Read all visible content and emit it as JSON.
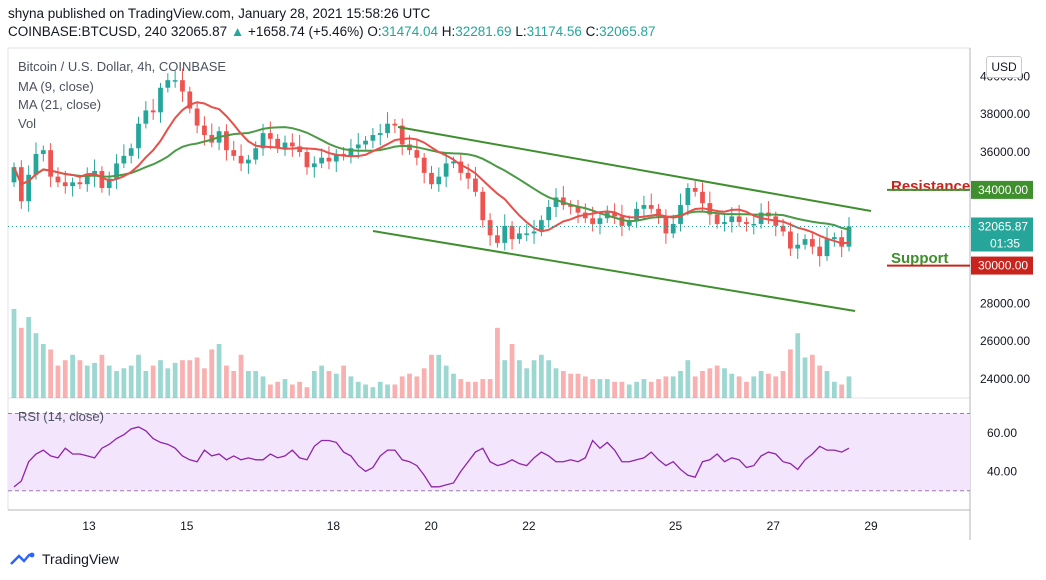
{
  "header": {
    "published_line": "shyna published on TradingView.com, January 28, 2021 15:58:26 UTC",
    "symbol": "COINBASE:BTCUSD, 240",
    "last": "32065.87",
    "change_arrow": "▲",
    "change": "+1658.74 (+5.46%)",
    "o_label": "O:",
    "o_value": "31474.04",
    "h_label": "H:",
    "h_value": "32281.69",
    "l_label": "L:",
    "l_value": "31174.56",
    "c_label": "C:",
    "c_value": "32065.87"
  },
  "legend": {
    "title": "Bitcoin / U.S. Dollar, 4h, COINBASE",
    "ma9": "MA (9, close)",
    "ma21": "MA (21, close)",
    "vol": "Vol",
    "rsi": "RSI (14, close)"
  },
  "currency_button": "USD",
  "annotations": {
    "resistance_label": "Resistance",
    "support_label": "Support",
    "resistance_value": "34000.00",
    "support_value": "30000.00",
    "price_value": "32065.87",
    "countdown": "01:35"
  },
  "footer": {
    "brand": "TradingView"
  },
  "colors": {
    "up": "#26a69a",
    "down": "#ef5350",
    "ma9": "#e8504b",
    "ma21": "#4c9a47",
    "channel": "#3f8f2e",
    "annotation": "#c8241d",
    "rsi_line": "#8e24aa",
    "rsi_band": "#f3e5fc"
  },
  "chart_data": {
    "type": "candlestick",
    "title": "Bitcoin / U.S. Dollar, 4h, COINBASE",
    "price_axis": {
      "ticks": [
        "40000.00",
        "38000.00",
        "36000.00",
        "34000.00",
        "32000.00",
        "30000.00",
        "28000.00",
        "26000.00",
        "24000.00"
      ],
      "range": [
        23000,
        41500
      ]
    },
    "rsi_axis": {
      "ticks": [
        "60.00",
        "40.00"
      ],
      "range": [
        20,
        78
      ],
      "bands": [
        30,
        70
      ]
    },
    "x_ticks": [
      {
        "label": "13",
        "day": 13
      },
      {
        "label": "15",
        "day": 15
      },
      {
        "label": "18",
        "day": 18
      },
      {
        "label": "20",
        "day": 20
      },
      {
        "label": "22",
        "day": 22
      },
      {
        "label": "25",
        "day": 25
      },
      {
        "label": "27",
        "day": 27
      },
      {
        "label": "29",
        "day": 29
      }
    ],
    "close": [
      35200,
      33400,
      34800,
      35900,
      36100,
      34700,
      34400,
      34200,
      34400,
      34300,
      34700,
      35000,
      34100,
      34600,
      35400,
      35800,
      36200,
      37500,
      38200,
      38100,
      39400,
      39800,
      39800,
      39200,
      38300,
      37400,
      36900,
      36500,
      37100,
      36100,
      35800,
      35400,
      35600,
      36200,
      37000,
      36700,
      36200,
      36500,
      36300,
      36000,
      35200,
      35400,
      35700,
      35500,
      35900,
      35800,
      36200,
      36400,
      36600,
      36900,
      37000,
      37500,
      37400,
      36400,
      36100,
      35700,
      34900,
      34300,
      34700,
      35400,
      35500,
      34900,
      34600,
      33900,
      32400,
      31600,
      31200,
      32100,
      31400,
      31700,
      31700,
      31800,
      32400,
      33100,
      33600,
      33200,
      33100,
      32800,
      32500,
      32200,
      32500,
      32800,
      32600,
      32100,
      32400,
      33000,
      33200,
      33000,
      32600,
      31700,
      32200,
      33200,
      34100,
      33900,
      33300,
      32700,
      32200,
      32300,
      32600,
      32300,
      32200,
      32200,
      32800,
      32600,
      32100,
      31800,
      30900,
      31100,
      31400,
      31000,
      30500,
      31400,
      31500,
      31000,
      32070
    ],
    "volume": [
      0.33,
      0.26,
      0.3,
      0.24,
      0.2,
      0.18,
      0.12,
      0.14,
      0.16,
      0.14,
      0.12,
      0.13,
      0.16,
      0.12,
      0.1,
      0.11,
      0.12,
      0.16,
      0.1,
      0.12,
      0.14,
      0.11,
      0.13,
      0.14,
      0.14,
      0.15,
      0.11,
      0.18,
      0.2,
      0.12,
      0.1,
      0.16,
      0.1,
      0.1,
      0.08,
      0.05,
      0.06,
      0.07,
      0.05,
      0.06,
      0.04,
      0.1,
      0.12,
      0.1,
      0.09,
      0.12,
      0.08,
      0.06,
      0.05,
      0.04,
      0.06,
      0.05,
      0.05,
      0.08,
      0.09,
      0.08,
      0.11,
      0.16,
      0.16,
      0.12,
      0.09,
      0.07,
      0.06,
      0.06,
      0.07,
      0.07,
      0.26,
      0.14,
      0.2,
      0.14,
      0.11,
      0.14,
      0.16,
      0.14,
      0.11,
      0.1,
      0.09,
      0.09,
      0.08,
      0.07,
      0.07,
      0.07,
      0.06,
      0.06,
      0.05,
      0.06,
      0.07,
      0.06,
      0.07,
      0.08,
      0.08,
      0.1,
      0.14,
      0.08,
      0.1,
      0.11,
      0.12,
      0.11,
      0.09,
      0.08,
      0.06,
      0.08,
      0.1,
      0.09,
      0.08,
      0.1,
      0.18,
      0.24,
      0.15,
      0.16,
      0.12,
      0.1,
      0.06,
      0.05,
      0.08
    ],
    "rsi": [
      32,
      35,
      45,
      49,
      51,
      48,
      47,
      52,
      49,
      49,
      48,
      47,
      52,
      54,
      57,
      59,
      62,
      63,
      61,
      57,
      55,
      54,
      52,
      48,
      46,
      45,
      51,
      48,
      49,
      46,
      48,
      46,
      47,
      46,
      46,
      49,
      47,
      48,
      51,
      47,
      46,
      53,
      56,
      56,
      55,
      50,
      48,
      43,
      40,
      42,
      48,
      51,
      51,
      46,
      45,
      43,
      38,
      32,
      32,
      33,
      34,
      40,
      45,
      50,
      52,
      45,
      43,
      44,
      46,
      44,
      43,
      47,
      50,
      48,
      45,
      45,
      46,
      45,
      47,
      56,
      52,
      55,
      51,
      45,
      45,
      46,
      47,
      50,
      46,
      43,
      45,
      41,
      38,
      37,
      45,
      46,
      49,
      45,
      47,
      46,
      42,
      43,
      48,
      50,
      49,
      45,
      44,
      41,
      46,
      49,
      53,
      51,
      51,
      50,
      52
    ]
  }
}
